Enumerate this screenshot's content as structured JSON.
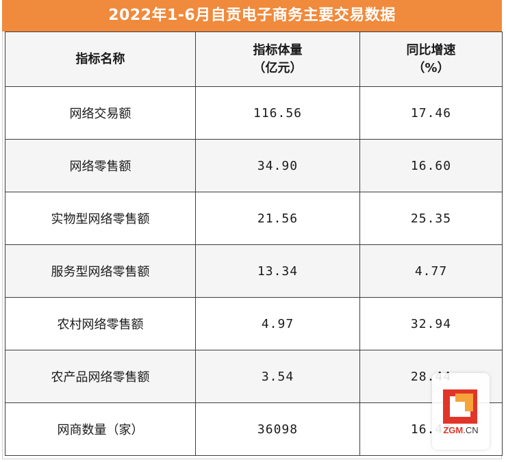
{
  "title": "2022年1-6月自贡电子商务主要交易数据",
  "header": {
    "col1": "指标名称",
    "col2_line1": "指标体量",
    "col2_line2": "（亿元）",
    "col3_line1": "同比增速",
    "col3_line2": "（%）"
  },
  "rows": [
    {
      "name": "网络交易额",
      "amount": "116.56",
      "growth": "17.46"
    },
    {
      "name": "网络零售额",
      "amount": "34.90",
      "growth": "16.60"
    },
    {
      "name": "实物型网络零售额",
      "amount": "21.56",
      "growth": "25.35"
    },
    {
      "name": "服务型网络零售额",
      "amount": "13.34",
      "growth": "4.77"
    },
    {
      "name": "农村网络零售额",
      "amount": "4.97",
      "growth": "32.94"
    },
    {
      "name": "农产品网络零售额",
      "amount": "3.54",
      "growth": "28.44"
    },
    {
      "name": "网商数量（家）",
      "amount": "36098",
      "growth": "16.42"
    }
  ],
  "watermark": {
    "brand_prefix": "ZGM",
    "brand_suffix": ".CN",
    "logo_icon": "zgm-logo-icon"
  },
  "colors": {
    "title_bg": "#f08a3c",
    "row_alt": "#f5f5f5",
    "border": "#3c3c3c",
    "logo_red": "#e2352a",
    "logo_orange": "#f6a33a"
  }
}
